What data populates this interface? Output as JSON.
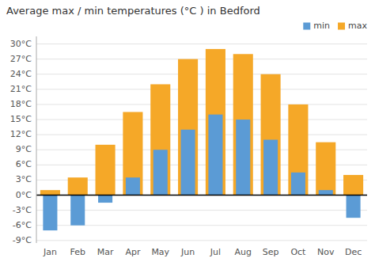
{
  "chart_data": {
    "type": "bar",
    "title": "Average max / min temperatures (°C ) in Bedford",
    "categories": [
      "Jan",
      "Feb",
      "Mar",
      "Apr",
      "May",
      "Jun",
      "Jul",
      "Aug",
      "Sep",
      "Oct",
      "Nov",
      "Dec"
    ],
    "series": [
      {
        "name": "min",
        "color": "#5b9bd5",
        "values": [
          -7,
          -6,
          -1.5,
          3.5,
          9,
          13,
          16,
          15,
          11,
          4.5,
          1,
          -4.5
        ]
      },
      {
        "name": "max",
        "color": "#f5a828",
        "values": [
          1,
          3.5,
          10,
          16.5,
          22,
          27,
          29,
          28,
          24,
          18,
          10.5,
          4
        ]
      }
    ],
    "ylim": [
      -9.5,
      31.5
    ],
    "yticks": [
      {
        "value": -9,
        "label": "-9°C"
      },
      {
        "value": -6,
        "label": "-6°C"
      },
      {
        "value": -3,
        "label": "-3°C"
      },
      {
        "value": 0,
        "label": "0°C"
      },
      {
        "value": 3,
        "label": "3°C"
      },
      {
        "value": 6,
        "label": "6°C"
      },
      {
        "value": 9,
        "label": "9°C"
      },
      {
        "value": 12,
        "label": "12°C"
      },
      {
        "value": 15,
        "label": "15°C"
      },
      {
        "value": 18,
        "label": "18°C"
      },
      {
        "value": 21,
        "label": "21°C"
      },
      {
        "value": 24,
        "label": "24°C"
      },
      {
        "value": 27,
        "label": "27°C"
      },
      {
        "value": 30,
        "label": "30°C"
      }
    ],
    "grid": true,
    "legend": "upper right"
  }
}
